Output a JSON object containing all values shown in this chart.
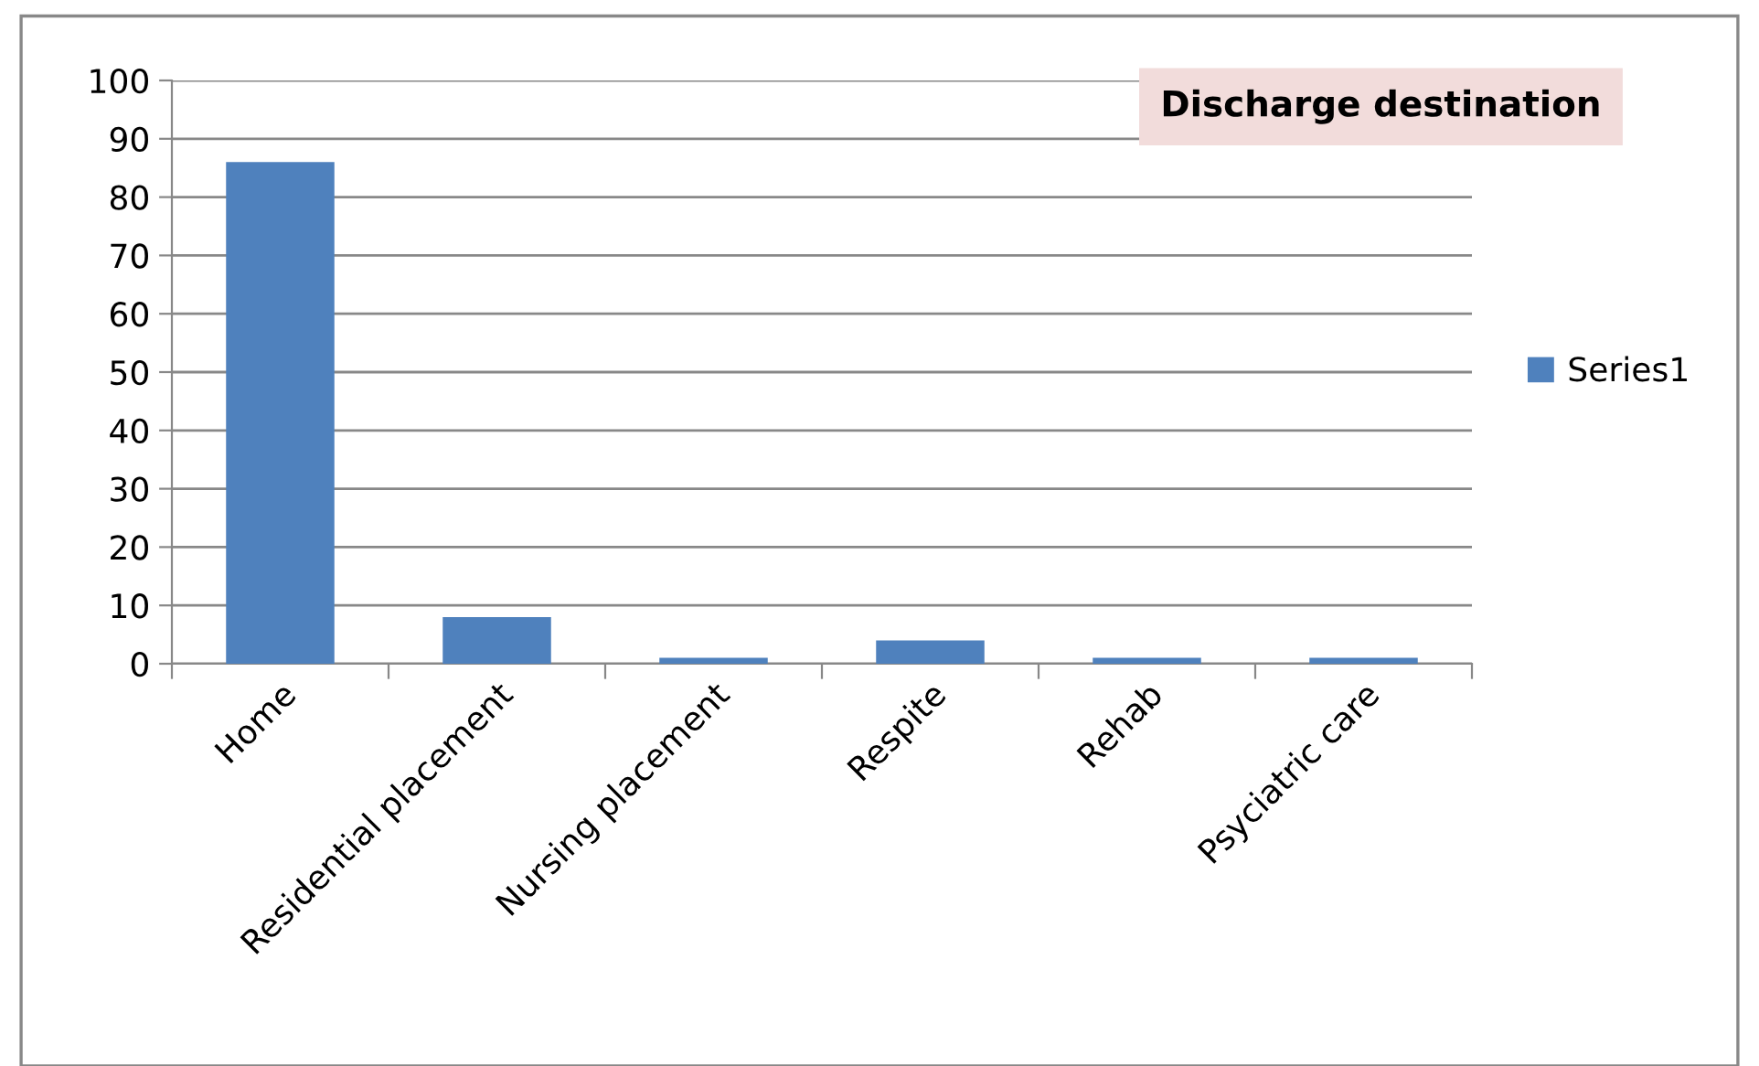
{
  "chart_data": {
    "type": "bar",
    "title": "Discharge destination",
    "categories": [
      "Home",
      "Residential placement",
      "Nursing placement",
      "Respite",
      "Rehab",
      "Psyciatric care"
    ],
    "series": [
      {
        "name": "Series1",
        "color": "#4f81bd",
        "values": [
          86,
          8,
          1,
          4,
          1,
          1
        ]
      }
    ],
    "ylim": [
      0,
      100
    ],
    "yticks": [
      0,
      10,
      20,
      30,
      40,
      50,
      60,
      70,
      80,
      90,
      100
    ],
    "grid": "y",
    "legend": "right"
  }
}
